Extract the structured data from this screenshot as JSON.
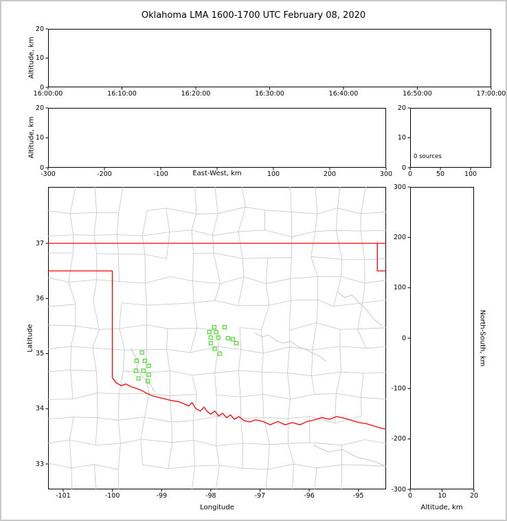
{
  "title": "Oklahoma LMA 1600-1700 UTC February 08, 2020",
  "colors": {
    "frame": "#c8c8c8",
    "axis": "#000000",
    "state_border": "#ff0000",
    "county": "#c4c4c4",
    "river": "#c0c0c0",
    "station": "#4bdd2a"
  },
  "panels": {
    "time_height": {
      "ylabel": "Altitude, km",
      "yticks": [
        "20",
        "10",
        "0"
      ],
      "xticks": [
        "16:00:00",
        "16:10:00",
        "16:20:00",
        "16:30:00",
        "16:40:00",
        "16:50:00",
        "17:00:00"
      ]
    },
    "ew_height": {
      "ylabel": "Altitude, km",
      "xlabel": "East-West, km",
      "yticks": [
        "20",
        "10",
        "0"
      ],
      "xticks": [
        "-300",
        "-200",
        "-100",
        "",
        "100",
        "200",
        "300"
      ]
    },
    "histogram": {
      "yticks": [
        "20",
        "10",
        "0"
      ],
      "xticks": [
        "0",
        "50",
        "100"
      ],
      "annotation": "0 sources"
    },
    "map": {
      "ylabel": "Latitude",
      "xlabel": "Longitude",
      "yticks": [
        "37",
        "36",
        "35",
        "34",
        "33"
      ],
      "xticks": [
        "-101",
        "-100",
        "-99",
        "-98",
        "-97",
        "-96",
        "-95"
      ]
    },
    "ns_height": {
      "ylabel_right": "North-South, km",
      "xlabel": "Altitude, km",
      "yticks": [
        "300",
        "200",
        "100",
        "0",
        "-100",
        "-200",
        "-300"
      ],
      "xticks": [
        "0",
        "10",
        "20"
      ]
    }
  },
  "chart_data": {
    "type": "scatter",
    "title": "Oklahoma LMA 1600-1700 UTC February 08, 2020",
    "time_window_utc": [
      "16:00:00",
      "17:00:00"
    ],
    "source_count": 0,
    "sources": [],
    "axes": {
      "time_panel": {
        "x_range": [
          "16:00:00",
          "17:00:00"
        ],
        "y_range_km": [
          0,
          20
        ]
      },
      "east_west_panel": {
        "x_range_km": [
          -300,
          300
        ],
        "y_range_km": [
          0,
          20
        ]
      },
      "histogram_panel": {
        "x_range_counts": [
          0,
          130
        ],
        "y_range_km": [
          0,
          20
        ]
      },
      "map_panel": {
        "lon_range": [
          -101.31,
          -94.44
        ],
        "lat_range": [
          32.54,
          38.02
        ]
      },
      "north_south_panel": {
        "x_range_km": [
          0,
          20
        ],
        "y_range_km": [
          -300,
          300
        ]
      }
    },
    "stations_lon_lat": [
      [
        -99.4,
        35.02
      ],
      [
        -99.51,
        34.87
      ],
      [
        -99.34,
        34.87
      ],
      [
        -99.26,
        34.78
      ],
      [
        -99.52,
        34.69
      ],
      [
        -99.37,
        34.69
      ],
      [
        -99.26,
        34.62
      ],
      [
        -99.47,
        34.55
      ],
      [
        -99.28,
        34.5
      ],
      [
        -97.93,
        35.48
      ],
      [
        -97.72,
        35.48
      ],
      [
        -98.03,
        35.39
      ],
      [
        -97.89,
        35.39
      ],
      [
        -98.0,
        35.29
      ],
      [
        -97.85,
        35.29
      ],
      [
        -97.65,
        35.28
      ],
      [
        -97.55,
        35.26
      ],
      [
        -97.48,
        35.19
      ],
      [
        -98.0,
        35.19
      ],
      [
        -97.92,
        35.09
      ],
      [
        -97.82,
        35.0
      ]
    ],
    "state_border_segments": [
      {
        "name": "kansas-border-lat37",
        "points": [
          [
            -101.31,
            37.0
          ],
          [
            -94.44,
            37.0
          ]
        ]
      },
      {
        "name": "missouri-border",
        "points": [
          [
            -94.615,
            37.0
          ],
          [
            -94.615,
            36.5
          ],
          [
            -94.44,
            36.5
          ]
        ]
      },
      {
        "name": "panhandle-north-lat36p5",
        "points": [
          [
            -101.31,
            36.5
          ],
          [
            -100.0,
            36.5
          ]
        ]
      },
      {
        "name": "texas-border-lon100",
        "points": [
          [
            -100.0,
            36.5
          ],
          [
            -100.0,
            34.56
          ]
        ]
      },
      {
        "name": "red-river-border",
        "points": [
          [
            -100.0,
            34.56
          ],
          [
            -99.92,
            34.47
          ],
          [
            -99.82,
            34.42
          ],
          [
            -99.73,
            34.45
          ],
          [
            -99.62,
            34.4
          ],
          [
            -99.51,
            34.37
          ],
          [
            -99.4,
            34.33
          ],
          [
            -99.3,
            34.28
          ],
          [
            -99.2,
            34.24
          ],
          [
            -99.08,
            34.21
          ],
          [
            -98.94,
            34.18
          ],
          [
            -98.8,
            34.15
          ],
          [
            -98.66,
            34.13
          ],
          [
            -98.54,
            34.09
          ],
          [
            -98.45,
            34.05
          ],
          [
            -98.38,
            34.11
          ],
          [
            -98.3,
            34.0
          ],
          [
            -98.21,
            33.96
          ],
          [
            -98.14,
            34.03
          ],
          [
            -98.07,
            33.95
          ],
          [
            -98.0,
            33.9
          ],
          [
            -97.92,
            33.96
          ],
          [
            -97.84,
            33.87
          ],
          [
            -97.76,
            33.92
          ],
          [
            -97.68,
            33.84
          ],
          [
            -97.6,
            33.89
          ],
          [
            -97.52,
            33.81
          ],
          [
            -97.43,
            33.86
          ],
          [
            -97.33,
            33.79
          ],
          [
            -97.21,
            33.76
          ],
          [
            -97.09,
            33.8
          ],
          [
            -96.94,
            33.77
          ],
          [
            -96.79,
            33.71
          ],
          [
            -96.64,
            33.77
          ],
          [
            -96.49,
            33.71
          ],
          [
            -96.34,
            33.75
          ],
          [
            -96.19,
            33.71
          ],
          [
            -96.04,
            33.77
          ],
          [
            -95.89,
            33.8
          ],
          [
            -95.74,
            33.84
          ],
          [
            -95.59,
            33.81
          ],
          [
            -95.44,
            33.86
          ],
          [
            -95.29,
            33.83
          ],
          [
            -95.14,
            33.79
          ],
          [
            -94.99,
            33.75
          ],
          [
            -94.84,
            33.73
          ],
          [
            -94.69,
            33.69
          ],
          [
            -94.55,
            33.65
          ],
          [
            -94.43,
            33.63
          ]
        ]
      }
    ],
    "rivers_lon_lat": [
      [
        [
          -99.62,
          35.1
        ],
        [
          -99.55,
          34.97
        ],
        [
          -99.46,
          34.86
        ],
        [
          -99.52,
          34.73
        ],
        [
          -99.42,
          34.62
        ],
        [
          -99.32,
          34.52
        ],
        [
          -99.22,
          34.43
        ],
        [
          -99.14,
          34.3
        ]
      ],
      [
        [
          -97.1,
          35.38
        ],
        [
          -96.95,
          35.3
        ],
        [
          -96.83,
          35.34
        ],
        [
          -96.68,
          35.24
        ],
        [
          -96.53,
          35.19
        ],
        [
          -96.38,
          35.23
        ],
        [
          -96.23,
          35.13
        ],
        [
          -96.08,
          35.08
        ],
        [
          -95.93,
          35.01
        ],
        [
          -95.78,
          34.95
        ],
        [
          -95.66,
          34.86
        ]
      ],
      [
        [
          -95.42,
          36.12
        ],
        [
          -95.28,
          36.02
        ],
        [
          -95.13,
          36.06
        ],
        [
          -94.98,
          35.92
        ],
        [
          -94.84,
          35.8
        ],
        [
          -94.68,
          35.62
        ],
        [
          -94.52,
          35.5
        ]
      ],
      [
        [
          -95.92,
          33.34
        ],
        [
          -95.62,
          33.22
        ],
        [
          -95.32,
          33.26
        ],
        [
          -95.02,
          33.12
        ],
        [
          -94.72,
          33.06
        ],
        [
          -94.45,
          32.96
        ]
      ]
    ]
  }
}
